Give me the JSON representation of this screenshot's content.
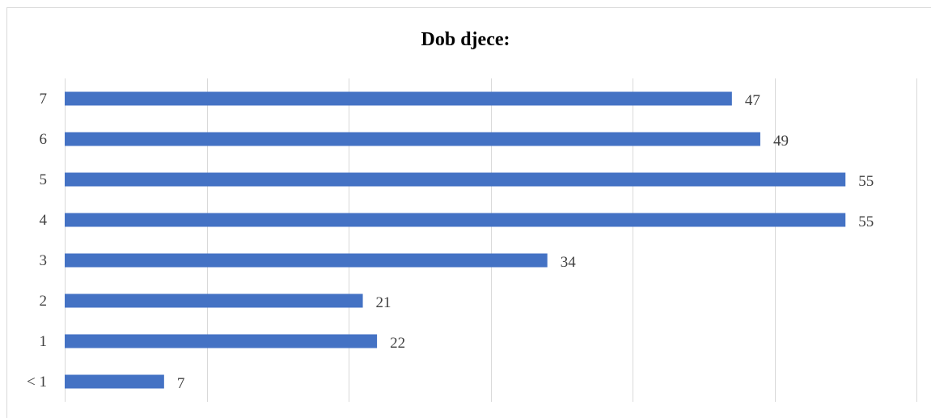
{
  "chart_data": {
    "type": "bar",
    "orientation": "horizontal",
    "title": "Dob djece:",
    "categories": [
      "< 1",
      "1",
      "2",
      "3",
      "4",
      "5",
      "6",
      "7"
    ],
    "values": [
      7,
      22,
      21,
      34,
      55,
      55,
      49,
      47
    ],
    "xlim": [
      0,
      60
    ],
    "x_gridline_step": 10,
    "x_tick_labels_visible": false,
    "grid": true,
    "legend": "none",
    "data_labels": true,
    "colors": {
      "bar": "#4472c4",
      "gridline": "#d9d9d9",
      "label": "#404040",
      "title": "#000000"
    }
  }
}
